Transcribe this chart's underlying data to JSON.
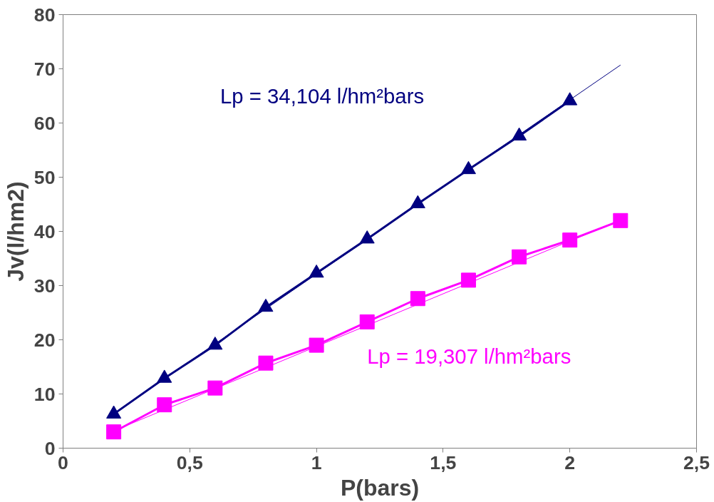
{
  "chart_data": {
    "type": "line",
    "xlabel": "P(bars)",
    "ylabel": "Jv(l/hm2)",
    "xlim": [
      0,
      2.5
    ],
    "ylim": [
      0,
      80
    ],
    "xticks": [
      0,
      {
        "value": 0.5,
        "label": "0,5"
      },
      1,
      {
        "value": 1.5,
        "label": "1,5"
      },
      2,
      {
        "value": 2.5,
        "label": "2,5"
      }
    ],
    "yticks": [
      0,
      10,
      20,
      30,
      40,
      50,
      60,
      70,
      80
    ],
    "grid": false,
    "line_style": "solid",
    "series": [
      {
        "color": "#000080",
        "marker": "triangle",
        "x": [
          0.2,
          0.4,
          0.6,
          0.8,
          1.0,
          1.2,
          1.4,
          1.6,
          1.8,
          2.0
        ],
        "values": [
          6.3,
          12.9,
          19.0,
          26.0,
          32.3,
          38.6,
          45.1,
          51.4,
          57.6,
          64.1
        ]
      },
      {
        "color": "#ff00ff",
        "marker": "square",
        "x": [
          0.2,
          0.4,
          0.6,
          0.8,
          1.0,
          1.2,
          1.4,
          1.6,
          1.8,
          2.0,
          2.2
        ],
        "values": [
          3.0,
          8.0,
          11.1,
          15.7,
          19.0,
          23.3,
          27.6,
          31.0,
          35.3,
          38.4,
          42.0
        ]
      },
      {
        "color": "#000080",
        "marker": "none",
        "x": [
          0.2,
          2.2
        ],
        "values": [
          6.4,
          70.7
        ]
      },
      {
        "color": "#ff00ff",
        "marker": "none",
        "x": [
          0.2,
          2.2
        ],
        "values": [
          3.2,
          42.1
        ]
      }
    ],
    "annotations": [
      "Lp = 34,104 l/hm²bars",
      "Lp = 19,307 l/hm²bars"
    ]
  }
}
